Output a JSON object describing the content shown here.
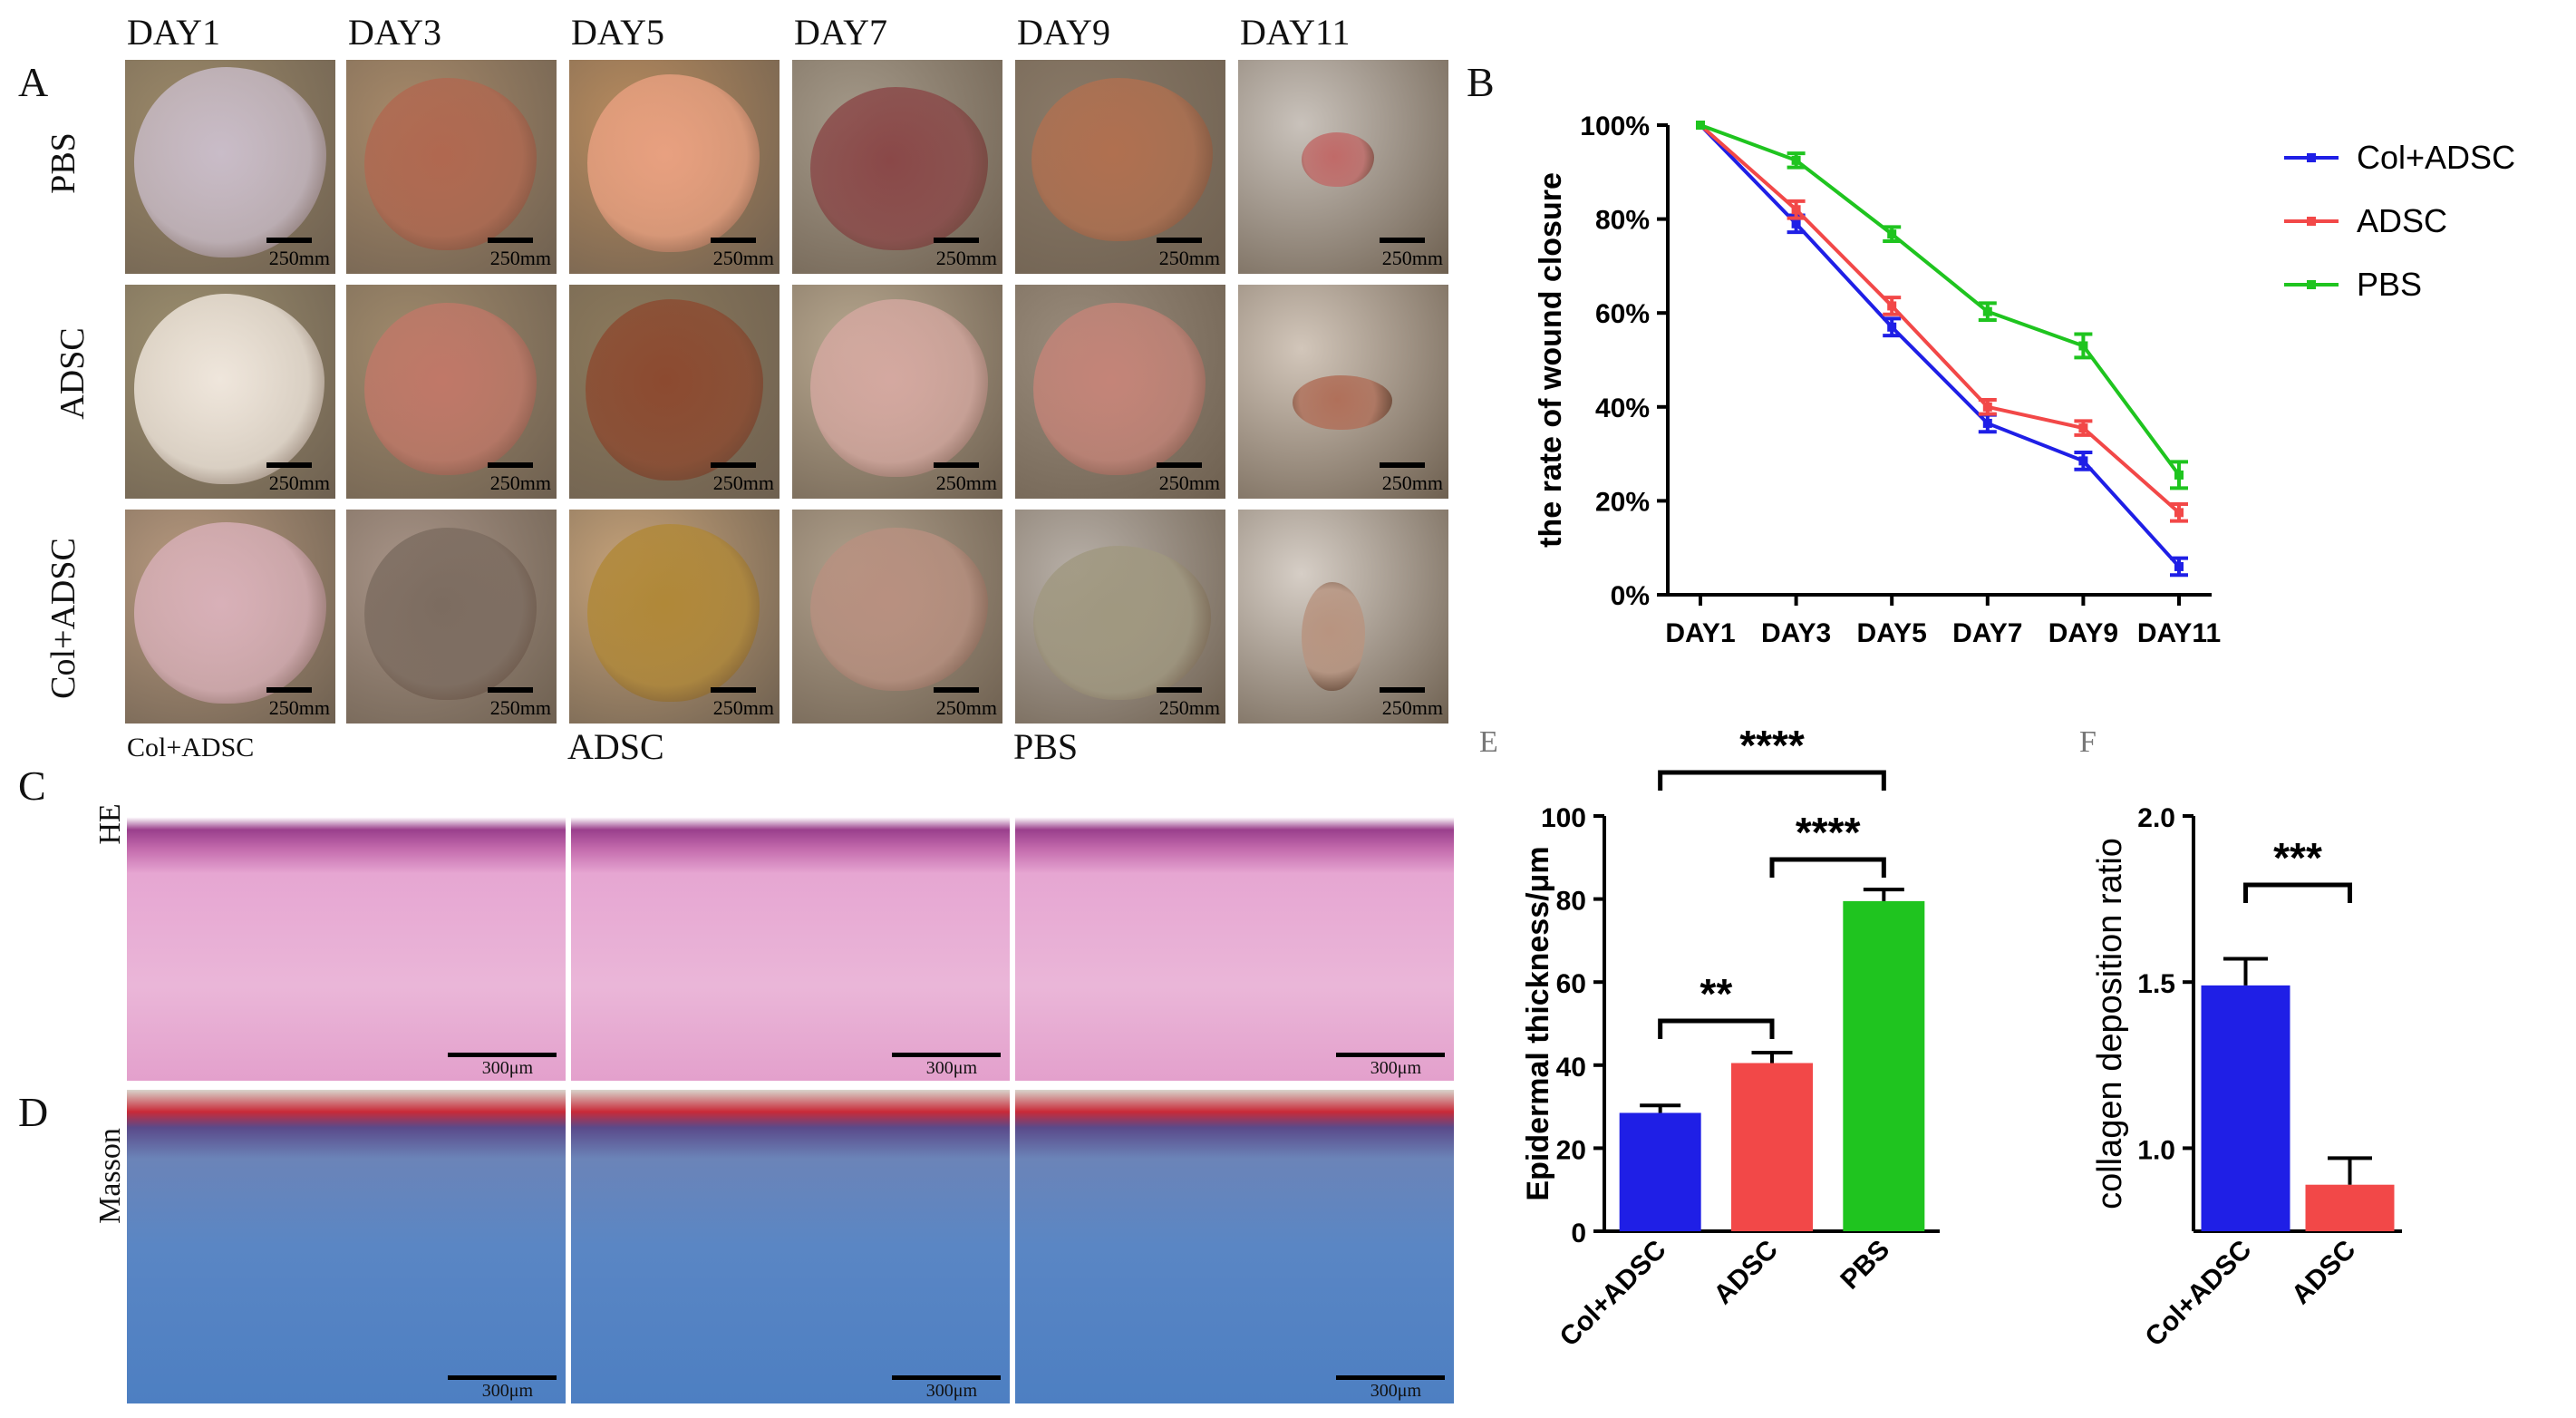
{
  "panel_letters": {
    "a": "A",
    "b": "B",
    "c": "C",
    "d": "D",
    "e": "E",
    "f": "F"
  },
  "photo_grid": {
    "days": [
      "DAY1",
      "DAY3",
      "DAY5",
      "DAY7",
      "DAY9",
      "DAY11"
    ],
    "rows": [
      "PBS",
      "ADSC",
      "Col+ADSC"
    ],
    "scale_label": "250mm"
  },
  "histology": {
    "columns": [
      "Col+ADSC",
      "ADSC",
      "PBS"
    ],
    "stains": [
      "HE",
      "Masson"
    ],
    "scale_label": "300μm"
  },
  "chart_data": [
    {
      "type": "line",
      "ylabel": "the rate of wound closure",
      "xlabel": "",
      "categories": [
        "DAY1",
        "DAY3",
        "DAY5",
        "DAY7",
        "DAY9",
        "DAY11"
      ],
      "ylim": [
        0,
        100
      ],
      "yticks": [
        "0%",
        "20%",
        "40%",
        "60%",
        "80%",
        "100%"
      ],
      "y_unit": "%",
      "legend_position": "top-right",
      "series": [
        {
          "name": "Col+ADSC",
          "color": "#1f1fe6",
          "values": [
            100,
            79,
            57,
            36.5,
            28.5,
            6
          ],
          "errors": [
            0,
            1.8,
            1.8,
            1.8,
            1.8,
            1.8
          ]
        },
        {
          "name": "ADSC",
          "color": "#f24848",
          "values": [
            100,
            82,
            61.5,
            40,
            35.5,
            17.5
          ],
          "errors": [
            0,
            1.8,
            1.8,
            1.5,
            1.5,
            1.8
          ]
        },
        {
          "name": "PBS",
          "color": "#1fc41f",
          "values": [
            100,
            92.5,
            76.8,
            60.3,
            53,
            25.5
          ],
          "errors": [
            0,
            1.5,
            1.5,
            1.8,
            2.5,
            2.8
          ]
        }
      ]
    },
    {
      "type": "bar",
      "ylabel": "Epidermal thickness/μm",
      "categories": [
        "Col+ADSC",
        "ADSC",
        "PBS"
      ],
      "values": [
        28.5,
        40.5,
        79.5
      ],
      "errors": [
        1.8,
        2.5,
        2.8
      ],
      "colors": [
        "#1f1fe6",
        "#f24848",
        "#1fc41f"
      ],
      "ylim": [
        0,
        100
      ],
      "yticks": [
        "0",
        "20",
        "40",
        "60",
        "80",
        "100"
      ],
      "significance": [
        {
          "pair": [
            "Col+ADSC",
            "ADSC"
          ],
          "label": "**"
        },
        {
          "pair": [
            "ADSC",
            "PBS"
          ],
          "label": "****"
        },
        {
          "pair": [
            "Col+ADSC",
            "PBS"
          ],
          "label": "****"
        }
      ]
    },
    {
      "type": "bar",
      "ylabel": "collagen deposition ratio",
      "categories": [
        "Col+ADSC",
        "ADSC"
      ],
      "values": [
        1.49,
        0.89
      ],
      "errors": [
        0.08,
        0.08
      ],
      "colors": [
        "#1f1fe6",
        "#f24848"
      ],
      "ylim": [
        0.75,
        2.0
      ],
      "yticks": [
        "1.0",
        "1.5",
        "2.0"
      ],
      "significance": [
        {
          "pair": [
            "Col+ADSC",
            "ADSC"
          ],
          "label": "***"
        }
      ]
    }
  ]
}
